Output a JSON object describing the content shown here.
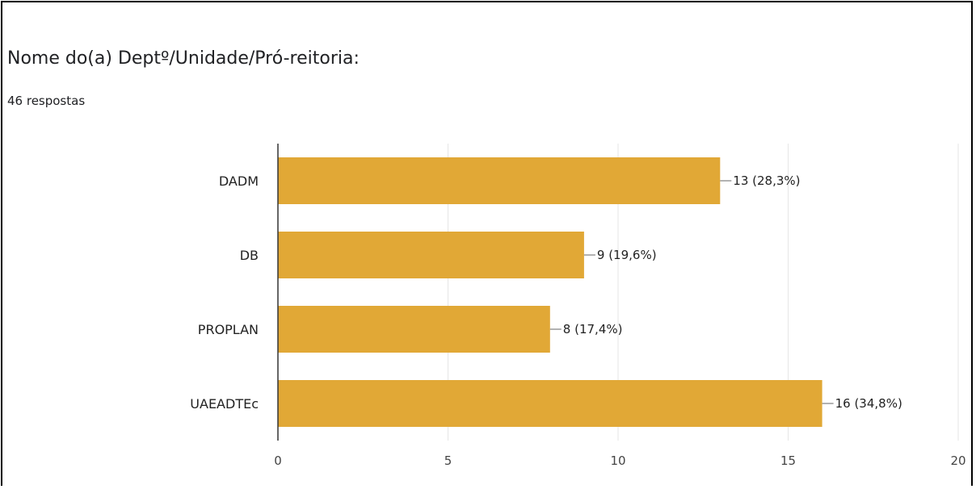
{
  "question": {
    "title": "Nome do(a) Deptº/Unidade/Pró-reitoria:",
    "responses": "46 respostas"
  },
  "colors": {
    "bar": "#e1a836",
    "grid": "#e6e6e6",
    "axis": "#333333",
    "leader": "#666666"
  },
  "chart_data": {
    "type": "bar",
    "orientation": "horizontal",
    "categories": [
      "DADM",
      "DB",
      "PROPLAN",
      "UAEADTEc"
    ],
    "values": [
      13,
      9,
      8,
      16
    ],
    "data_labels": [
      "13 (28,3%)",
      "9 (19,6%)",
      "8 (17,4%)",
      "16 (34,8%)"
    ],
    "xlim": [
      0,
      20
    ],
    "xticks": [
      0,
      5,
      10,
      15,
      20
    ],
    "grid": true,
    "legend": "none"
  }
}
